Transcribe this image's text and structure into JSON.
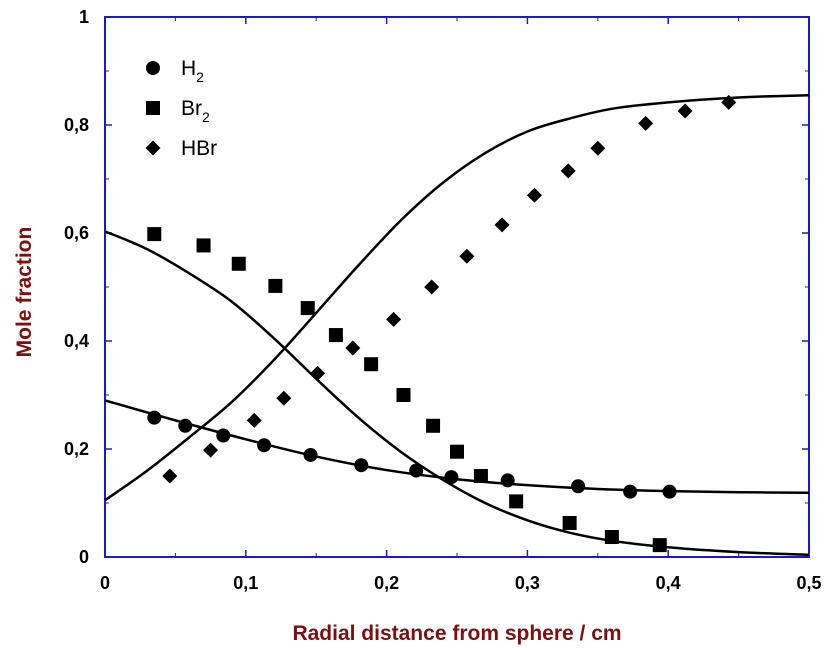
{
  "chart_data": {
    "type": "scatter",
    "title": "",
    "xlabel": "Radial distance from sphere / cm",
    "ylabel": "Mole fraction",
    "xlim": [
      0,
      0.5
    ],
    "ylim": [
      0,
      1
    ],
    "x_ticks": [
      {
        "value": 0,
        "label": "0"
      },
      {
        "value": 0.1,
        "label": "0,1"
      },
      {
        "value": 0.2,
        "label": "0,2"
      },
      {
        "value": 0.3,
        "label": "0,3"
      },
      {
        "value": 0.4,
        "label": "0,4"
      },
      {
        "value": 0.5,
        "label": "0,5"
      }
    ],
    "y_ticks": [
      {
        "value": 0,
        "label": "0"
      },
      {
        "value": 0.2,
        "label": "0,2"
      },
      {
        "value": 0.4,
        "label": "0,4"
      },
      {
        "value": 0.6,
        "label": "0,6"
      },
      {
        "value": 0.8,
        "label": "0,8"
      },
      {
        "value": 1,
        "label": "1"
      }
    ],
    "grid": false,
    "legend_position": "top-left",
    "colors": {
      "axes": "#1a1acc",
      "axis_title": "#7a1010",
      "markers": "#000000",
      "lines": "#000000"
    },
    "series": [
      {
        "name": "H",
        "subscript": "2",
        "marker": "circle",
        "points": [
          [
            0.035,
            0.258
          ],
          [
            0.057,
            0.243
          ],
          [
            0.084,
            0.225
          ],
          [
            0.113,
            0.207
          ],
          [
            0.146,
            0.189
          ],
          [
            0.182,
            0.17
          ],
          [
            0.221,
            0.16
          ],
          [
            0.246,
            0.148
          ],
          [
            0.286,
            0.142
          ],
          [
            0.336,
            0.131
          ],
          [
            0.373,
            0.121
          ],
          [
            0.401,
            0.121
          ]
        ]
      },
      {
        "name": "Br",
        "subscript": "2",
        "marker": "square",
        "points": [
          [
            0.035,
            0.598
          ],
          [
            0.07,
            0.577
          ],
          [
            0.095,
            0.543
          ],
          [
            0.121,
            0.502
          ],
          [
            0.144,
            0.461
          ],
          [
            0.164,
            0.411
          ],
          [
            0.189,
            0.357
          ],
          [
            0.212,
            0.3
          ],
          [
            0.233,
            0.243
          ],
          [
            0.25,
            0.195
          ],
          [
            0.267,
            0.15
          ],
          [
            0.292,
            0.103
          ],
          [
            0.33,
            0.063
          ],
          [
            0.36,
            0.037
          ],
          [
            0.394,
            0.022
          ]
        ]
      },
      {
        "name": "HBr",
        "subscript": "",
        "marker": "diamond",
        "points": [
          [
            0.046,
            0.15
          ],
          [
            0.075,
            0.198
          ],
          [
            0.106,
            0.253
          ],
          [
            0.127,
            0.294
          ],
          [
            0.151,
            0.34
          ],
          [
            0.176,
            0.387
          ],
          [
            0.205,
            0.44
          ],
          [
            0.232,
            0.5
          ],
          [
            0.257,
            0.557
          ],
          [
            0.282,
            0.615
          ],
          [
            0.305,
            0.67
          ],
          [
            0.329,
            0.715
          ],
          [
            0.35,
            0.757
          ],
          [
            0.384,
            0.803
          ],
          [
            0.412,
            0.826
          ],
          [
            0.443,
            0.842
          ]
        ]
      }
    ],
    "model_curves": [
      {
        "points": [
          [
            0,
            0.29
          ],
          [
            0.05,
            0.253
          ],
          [
            0.1,
            0.218
          ],
          [
            0.15,
            0.186
          ],
          [
            0.2,
            0.161
          ],
          [
            0.25,
            0.144
          ],
          [
            0.3,
            0.133
          ],
          [
            0.35,
            0.126
          ],
          [
            0.4,
            0.122
          ],
          [
            0.45,
            0.12
          ],
          [
            0.5,
            0.119
          ]
        ]
      },
      {
        "points": [
          [
            0,
            0.603
          ],
          [
            0.03,
            0.57
          ],
          [
            0.06,
            0.525
          ],
          [
            0.09,
            0.473
          ],
          [
            0.12,
            0.405
          ],
          [
            0.15,
            0.33
          ],
          [
            0.18,
            0.258
          ],
          [
            0.21,
            0.195
          ],
          [
            0.24,
            0.143
          ],
          [
            0.27,
            0.1
          ],
          [
            0.3,
            0.068
          ],
          [
            0.33,
            0.045
          ],
          [
            0.36,
            0.03
          ],
          [
            0.4,
            0.018
          ],
          [
            0.45,
            0.009
          ],
          [
            0.5,
            0.004
          ]
        ]
      },
      {
        "points": [
          [
            0,
            0.105
          ],
          [
            0.03,
            0.16
          ],
          [
            0.06,
            0.222
          ],
          [
            0.09,
            0.287
          ],
          [
            0.12,
            0.365
          ],
          [
            0.15,
            0.452
          ],
          [
            0.18,
            0.54
          ],
          [
            0.21,
            0.623
          ],
          [
            0.24,
            0.693
          ],
          [
            0.27,
            0.748
          ],
          [
            0.3,
            0.788
          ],
          [
            0.33,
            0.812
          ],
          [
            0.36,
            0.83
          ],
          [
            0.4,
            0.842
          ],
          [
            0.45,
            0.851
          ],
          [
            0.5,
            0.855
          ]
        ]
      }
    ]
  }
}
